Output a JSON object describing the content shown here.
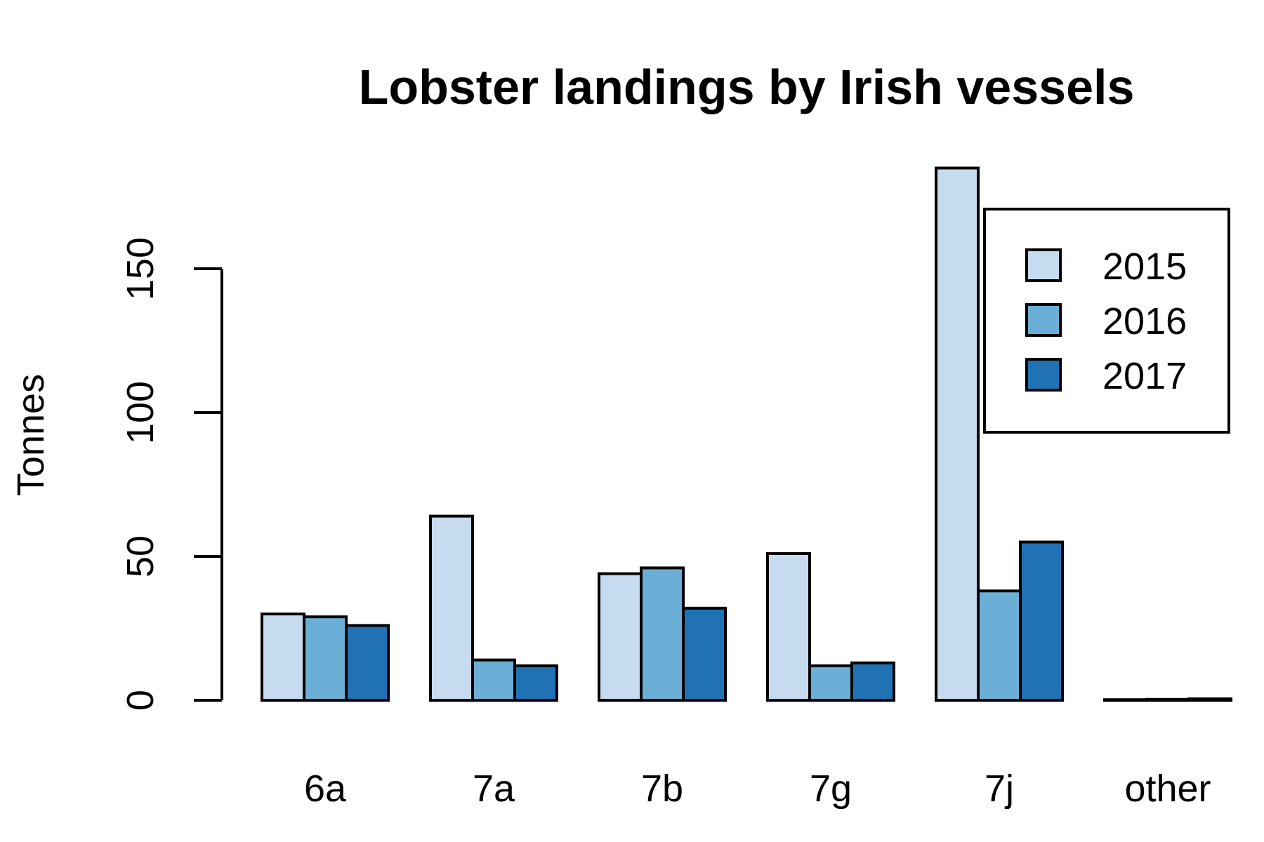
{
  "chart_data": {
    "type": "bar",
    "title": "Lobster landings by Irish vessels",
    "xlabel": "",
    "ylabel": "Tonnes",
    "categories": [
      "6a",
      "7a",
      "7b",
      "7g",
      "7j",
      "other"
    ],
    "series": [
      {
        "name": "2015",
        "color": "#c6dbef",
        "values": [
          30,
          64,
          44,
          51,
          185,
          0.2
        ]
      },
      {
        "name": "2016",
        "color": "#6baed6",
        "values": [
          29,
          14,
          46,
          12,
          38,
          0.3
        ]
      },
      {
        "name": "2017",
        "color": "#2171b5",
        "values": [
          26,
          12,
          32,
          13,
          55,
          0.5
        ]
      }
    ],
    "ylim": [
      0,
      185
    ],
    "yticks": [
      0,
      50,
      100,
      150
    ],
    "grid": false,
    "legend": "top-right"
  }
}
